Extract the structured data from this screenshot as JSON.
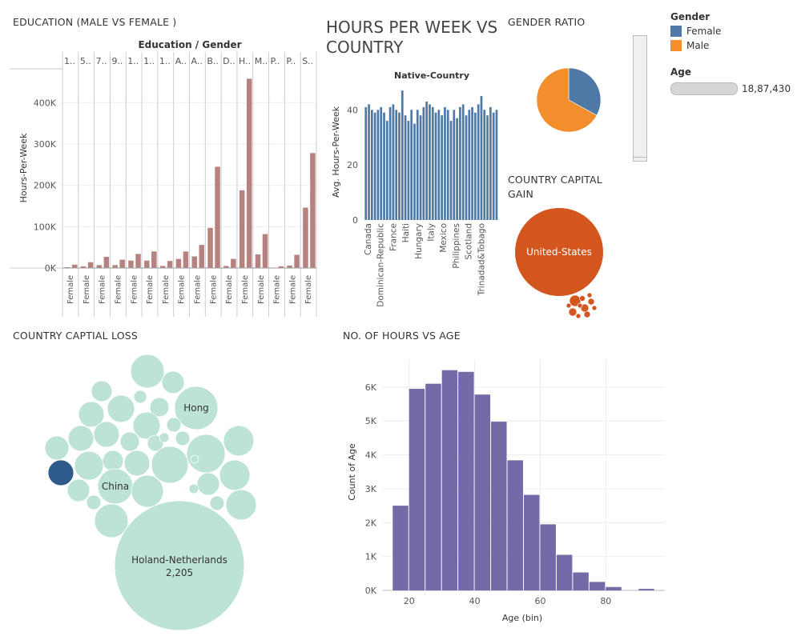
{
  "titles": {
    "education": "EDUCATION (MALE VS FEMALE )",
    "hours_country": "HOURS PER WEEK VS COUNTRY",
    "gender_ratio": "GENDER RATIO",
    "capital_gain": "COUNTRY CAPITAL GAIN",
    "capital_loss": "COUNTRY CAPTIAL LOSS",
    "hours_age": "NO. OF HOURS VS AGE"
  },
  "legend": {
    "title": "Gender",
    "items": [
      {
        "label": "Female",
        "color": "#4e79a7"
      },
      {
        "label": "Male",
        "color": "#f28e2b"
      }
    ]
  },
  "age_filter": {
    "title": "Age",
    "value": "18,87,430"
  },
  "chart_data": [
    {
      "id": "education",
      "type": "bar",
      "header": "Education / Gender",
      "ylabel": "Hours-Per-Week",
      "ylim": [
        0,
        480000
      ],
      "yticks": [
        0,
        100000,
        200000,
        300000,
        400000
      ],
      "ytick_labels": [
        "0K",
        "100K",
        "200K",
        "300K",
        "400K"
      ],
      "color": "#b5827f",
      "groups": [
        {
          "label": "1..",
          "sub": "Female",
          "values": [
            2000,
            8000
          ]
        },
        {
          "label": "5..",
          "sub": "Female",
          "values": [
            4000,
            14000
          ]
        },
        {
          "label": "7..",
          "sub": "Female",
          "values": [
            7000,
            27000
          ]
        },
        {
          "label": "9..",
          "sub": "Female",
          "values": [
            7000,
            20000
          ]
        },
        {
          "label": "1..",
          "sub": "Female",
          "values": [
            18000,
            34000
          ]
        },
        {
          "label": "1..",
          "sub": "Female",
          "values": [
            18000,
            40000
          ]
        },
        {
          "label": "1..",
          "sub": "Female",
          "values": [
            5000,
            17000
          ]
        },
        {
          "label": "A..",
          "sub": "Female",
          "values": [
            22000,
            40000
          ]
        },
        {
          "label": "A..",
          "sub": "Female",
          "values": [
            28000,
            56000
          ]
        },
        {
          "label": "B..",
          "sub": "Female",
          "values": [
            97000,
            245000
          ]
        },
        {
          "label": "D..",
          "sub": "Female",
          "values": [
            5000,
            22000
          ]
        },
        {
          "label": "H..",
          "sub": "Female",
          "values": [
            188000,
            458000
          ]
        },
        {
          "label": "M..",
          "sub": "Female",
          "values": [
            33000,
            82000
          ]
        },
        {
          "label": "P..",
          "sub": "Female",
          "values": [
            1000,
            4000
          ]
        },
        {
          "label": "P..",
          "sub": "Female",
          "values": [
            6000,
            32000
          ]
        },
        {
          "label": "S..",
          "sub": "Female",
          "values": [
            146000,
            278000
          ]
        }
      ]
    },
    {
      "id": "hours_country",
      "type": "bar",
      "header": "Native-Country",
      "ylabel": "Avg. Hours-Per-Week",
      "ylim": [
        0,
        52
      ],
      "yticks": [
        0,
        20,
        40
      ],
      "color": "#4e79a7",
      "tick_labels": [
        "Canada",
        "Dominican-Republic",
        "France",
        "Haiti",
        "Hungary",
        "Italy",
        "Mexico",
        "Philippines",
        "Scotland",
        "Trinadad&Tobago"
      ],
      "values": [
        41,
        42,
        40,
        39,
        40,
        41,
        39,
        36,
        41,
        42,
        40,
        39,
        47,
        38,
        36,
        40,
        35,
        40,
        38,
        41,
        43,
        42,
        41,
        39,
        40,
        38,
        41,
        40,
        36,
        40,
        37,
        41,
        42,
        38,
        40,
        41,
        39,
        42,
        45,
        40,
        38,
        41,
        39,
        40
      ]
    },
    {
      "id": "gender_ratio",
      "type": "pie",
      "slices": [
        {
          "name": "Female",
          "value": 33,
          "color": "#4e79a7"
        },
        {
          "name": "Male",
          "value": 67,
          "color": "#f28e2b"
        }
      ]
    },
    {
      "id": "capital_gain",
      "type": "bubble",
      "color": "#d3561e",
      "label": "United-States"
    },
    {
      "id": "capital_loss",
      "type": "bubble",
      "color": "#bde3d7",
      "highlight_color": "#2e5b8a",
      "labels": [
        "Hong",
        "China",
        "Holand-Netherlands",
        "2,205"
      ]
    },
    {
      "id": "hours_age",
      "type": "bar",
      "xlabel": "Age (bin)",
      "ylabel": "Count of Age",
      "xlim": [
        12,
        98
      ],
      "ylim": [
        0,
        6800
      ],
      "xticks": [
        20,
        40,
        60,
        80
      ],
      "yticks": [
        0,
        1000,
        2000,
        3000,
        4000,
        5000,
        6000
      ],
      "ytick_labels": [
        "0K",
        "1K",
        "2K",
        "3K",
        "4K",
        "5K",
        "6K"
      ],
      "color": "#7569a8",
      "bin_width": 5,
      "bins": [
        15,
        20,
        25,
        30,
        35,
        40,
        45,
        50,
        55,
        60,
        65,
        70,
        75,
        80,
        85,
        90
      ],
      "values": [
        2500,
        5950,
        6100,
        6500,
        6450,
        5780,
        4980,
        3840,
        2820,
        1950,
        1050,
        530,
        250,
        100,
        0,
        45
      ]
    }
  ]
}
